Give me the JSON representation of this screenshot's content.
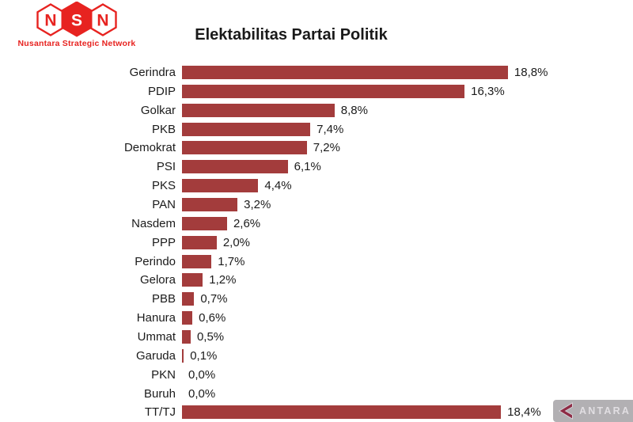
{
  "logo": {
    "letters": [
      "N",
      "S",
      "N"
    ],
    "tagline": "Nusantara Strategic Network",
    "brand_color": "#e72320"
  },
  "chart_data": {
    "type": "bar",
    "orientation": "horizontal",
    "title": "Elektabilitas Partai Politik",
    "categories": [
      "Gerindra",
      "PDIP",
      "Golkar",
      "PKB",
      "Demokrat",
      "PSI",
      "PKS",
      "PAN",
      "Nasdem",
      "PPP",
      "Perindo",
      "Gelora",
      "PBB",
      "Hanura",
      "Ummat",
      "Garuda",
      "PKN",
      "Buruh",
      "TT/TJ"
    ],
    "values": [
      18.8,
      16.3,
      8.8,
      7.4,
      7.2,
      6.1,
      4.4,
      3.2,
      2.6,
      2.0,
      1.7,
      1.2,
      0.7,
      0.6,
      0.5,
      0.1,
      0.0,
      0.0,
      18.4
    ],
    "value_labels": [
      "18,8%",
      "16,3%",
      "8,8%",
      "7,4%",
      "7,2%",
      "6,1%",
      "4,4%",
      "3,2%",
      "2,6%",
      "2,0%",
      "1,7%",
      "1,2%",
      "0,7%",
      "0,6%",
      "0,5%",
      "0,1%",
      "0,0%",
      "0,0%",
      "18,4%"
    ],
    "xlabel": "",
    "ylabel": "",
    "xlim": [
      0,
      20
    ],
    "grid": false,
    "legend": false,
    "bar_color": "#a33c3c"
  },
  "watermark": {
    "text": "ANTARA",
    "bg_color": "#b2b0b3",
    "logo_color": "#8e2b45"
  }
}
